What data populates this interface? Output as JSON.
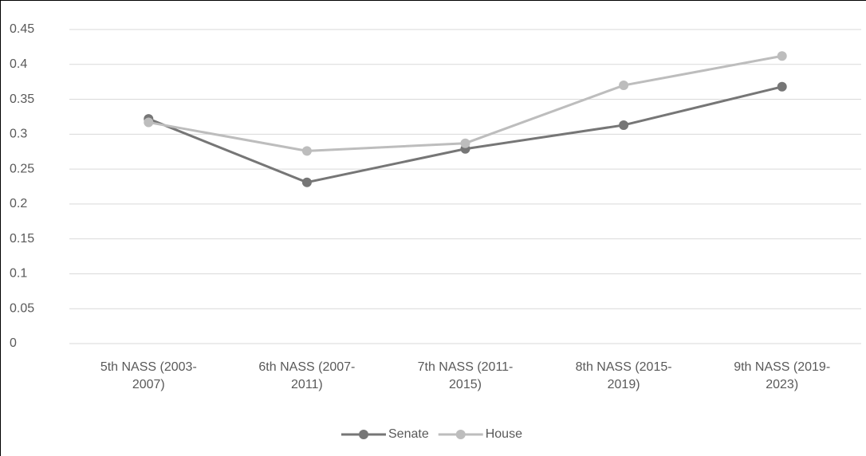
{
  "chart_data": {
    "type": "line",
    "categories": [
      "5th NASS (2003-2007)",
      "6th NASS (2007-2011)",
      "7th NASS (2011-2015)",
      "8th NASS (2015-2019)",
      "9th NASS (2019-2023)"
    ],
    "series": [
      {
        "name": "Senate",
        "color": "#767676",
        "values": [
          0.322,
          0.231,
          0.279,
          0.313,
          0.368
        ]
      },
      {
        "name": "House",
        "color": "#bdbdbd",
        "values": [
          0.317,
          0.276,
          0.287,
          0.37,
          0.412
        ]
      }
    ],
    "ylim": [
      0,
      0.45
    ],
    "yticks": [
      0,
      0.05,
      0.1,
      0.15,
      0.2,
      0.25,
      0.3,
      0.35,
      0.4,
      0.45
    ],
    "grid": true,
    "legend": "bottom"
  }
}
